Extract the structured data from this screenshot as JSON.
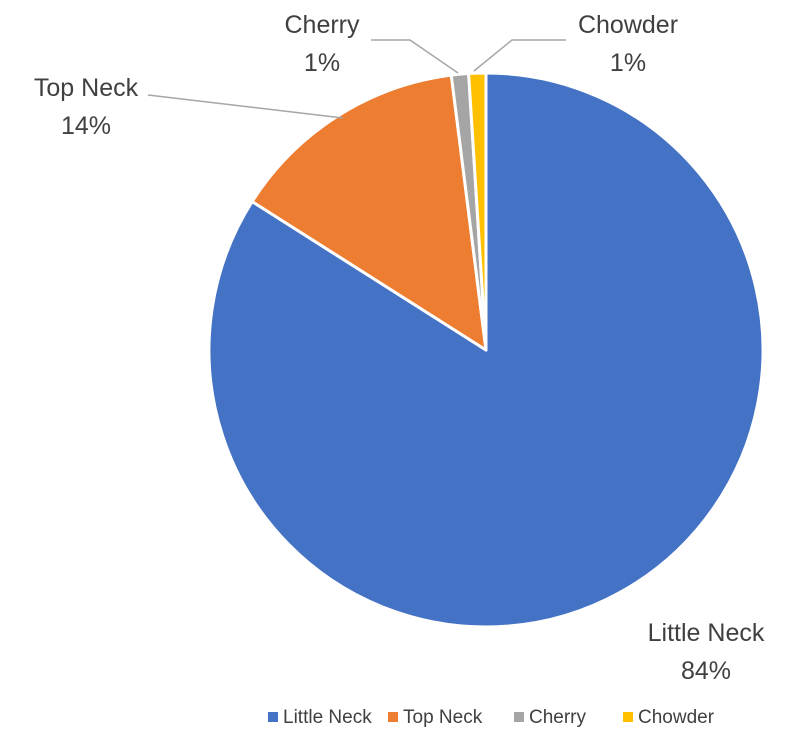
{
  "chart_data": {
    "type": "pie",
    "categories": [
      "Little Neck",
      "Top Neck",
      "Cherry",
      "Chowder"
    ],
    "values": [
      84,
      14,
      1,
      1
    ],
    "data_labels": [
      "84%",
      "14%",
      "1%",
      "1%"
    ],
    "colors": [
      "#4472C4",
      "#ED7D31",
      "#A5A5A5",
      "#FFC000"
    ],
    "start_angle_deg": 0,
    "direction": "clockwise",
    "legend_position": "bottom",
    "slice_border_color": "#FFFFFF"
  }
}
